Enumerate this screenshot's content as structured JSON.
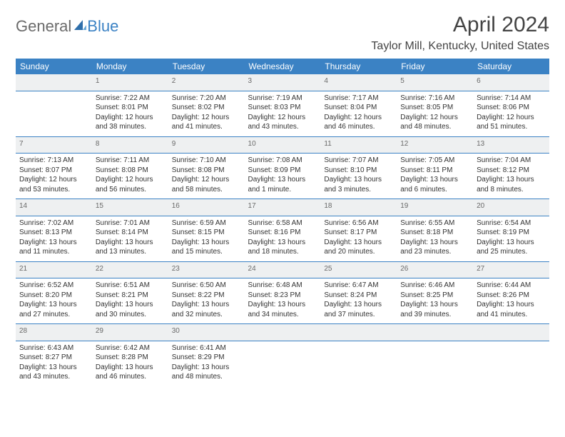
{
  "logo": {
    "text1": "General",
    "text2": "Blue"
  },
  "title": "April 2024",
  "location": "Taylor Mill, Kentucky, United States",
  "colors": {
    "header_bg": "#3b82c4",
    "header_text": "#ffffff",
    "daynum_bg": "#eef0f1",
    "daynum_text": "#6a6a6a",
    "row_border": "#3b82c4",
    "body_text": "#333333"
  },
  "day_headers": [
    "Sunday",
    "Monday",
    "Tuesday",
    "Wednesday",
    "Thursday",
    "Friday",
    "Saturday"
  ],
  "weeks": [
    [
      null,
      {
        "n": "1",
        "sr": "Sunrise: 7:22 AM",
        "ss": "Sunset: 8:01 PM",
        "dl": "Daylight: 12 hours and 38 minutes."
      },
      {
        "n": "2",
        "sr": "Sunrise: 7:20 AM",
        "ss": "Sunset: 8:02 PM",
        "dl": "Daylight: 12 hours and 41 minutes."
      },
      {
        "n": "3",
        "sr": "Sunrise: 7:19 AM",
        "ss": "Sunset: 8:03 PM",
        "dl": "Daylight: 12 hours and 43 minutes."
      },
      {
        "n": "4",
        "sr": "Sunrise: 7:17 AM",
        "ss": "Sunset: 8:04 PM",
        "dl": "Daylight: 12 hours and 46 minutes."
      },
      {
        "n": "5",
        "sr": "Sunrise: 7:16 AM",
        "ss": "Sunset: 8:05 PM",
        "dl": "Daylight: 12 hours and 48 minutes."
      },
      {
        "n": "6",
        "sr": "Sunrise: 7:14 AM",
        "ss": "Sunset: 8:06 PM",
        "dl": "Daylight: 12 hours and 51 minutes."
      }
    ],
    [
      {
        "n": "7",
        "sr": "Sunrise: 7:13 AM",
        "ss": "Sunset: 8:07 PM",
        "dl": "Daylight: 12 hours and 53 minutes."
      },
      {
        "n": "8",
        "sr": "Sunrise: 7:11 AM",
        "ss": "Sunset: 8:08 PM",
        "dl": "Daylight: 12 hours and 56 minutes."
      },
      {
        "n": "9",
        "sr": "Sunrise: 7:10 AM",
        "ss": "Sunset: 8:08 PM",
        "dl": "Daylight: 12 hours and 58 minutes."
      },
      {
        "n": "10",
        "sr": "Sunrise: 7:08 AM",
        "ss": "Sunset: 8:09 PM",
        "dl": "Daylight: 13 hours and 1 minute."
      },
      {
        "n": "11",
        "sr": "Sunrise: 7:07 AM",
        "ss": "Sunset: 8:10 PM",
        "dl": "Daylight: 13 hours and 3 minutes."
      },
      {
        "n": "12",
        "sr": "Sunrise: 7:05 AM",
        "ss": "Sunset: 8:11 PM",
        "dl": "Daylight: 13 hours and 6 minutes."
      },
      {
        "n": "13",
        "sr": "Sunrise: 7:04 AM",
        "ss": "Sunset: 8:12 PM",
        "dl": "Daylight: 13 hours and 8 minutes."
      }
    ],
    [
      {
        "n": "14",
        "sr": "Sunrise: 7:02 AM",
        "ss": "Sunset: 8:13 PM",
        "dl": "Daylight: 13 hours and 11 minutes."
      },
      {
        "n": "15",
        "sr": "Sunrise: 7:01 AM",
        "ss": "Sunset: 8:14 PM",
        "dl": "Daylight: 13 hours and 13 minutes."
      },
      {
        "n": "16",
        "sr": "Sunrise: 6:59 AM",
        "ss": "Sunset: 8:15 PM",
        "dl": "Daylight: 13 hours and 15 minutes."
      },
      {
        "n": "17",
        "sr": "Sunrise: 6:58 AM",
        "ss": "Sunset: 8:16 PM",
        "dl": "Daylight: 13 hours and 18 minutes."
      },
      {
        "n": "18",
        "sr": "Sunrise: 6:56 AM",
        "ss": "Sunset: 8:17 PM",
        "dl": "Daylight: 13 hours and 20 minutes."
      },
      {
        "n": "19",
        "sr": "Sunrise: 6:55 AM",
        "ss": "Sunset: 8:18 PM",
        "dl": "Daylight: 13 hours and 23 minutes."
      },
      {
        "n": "20",
        "sr": "Sunrise: 6:54 AM",
        "ss": "Sunset: 8:19 PM",
        "dl": "Daylight: 13 hours and 25 minutes."
      }
    ],
    [
      {
        "n": "21",
        "sr": "Sunrise: 6:52 AM",
        "ss": "Sunset: 8:20 PM",
        "dl": "Daylight: 13 hours and 27 minutes."
      },
      {
        "n": "22",
        "sr": "Sunrise: 6:51 AM",
        "ss": "Sunset: 8:21 PM",
        "dl": "Daylight: 13 hours and 30 minutes."
      },
      {
        "n": "23",
        "sr": "Sunrise: 6:50 AM",
        "ss": "Sunset: 8:22 PM",
        "dl": "Daylight: 13 hours and 32 minutes."
      },
      {
        "n": "24",
        "sr": "Sunrise: 6:48 AM",
        "ss": "Sunset: 8:23 PM",
        "dl": "Daylight: 13 hours and 34 minutes."
      },
      {
        "n": "25",
        "sr": "Sunrise: 6:47 AM",
        "ss": "Sunset: 8:24 PM",
        "dl": "Daylight: 13 hours and 37 minutes."
      },
      {
        "n": "26",
        "sr": "Sunrise: 6:46 AM",
        "ss": "Sunset: 8:25 PM",
        "dl": "Daylight: 13 hours and 39 minutes."
      },
      {
        "n": "27",
        "sr": "Sunrise: 6:44 AM",
        "ss": "Sunset: 8:26 PM",
        "dl": "Daylight: 13 hours and 41 minutes."
      }
    ],
    [
      {
        "n": "28",
        "sr": "Sunrise: 6:43 AM",
        "ss": "Sunset: 8:27 PM",
        "dl": "Daylight: 13 hours and 43 minutes."
      },
      {
        "n": "29",
        "sr": "Sunrise: 6:42 AM",
        "ss": "Sunset: 8:28 PM",
        "dl": "Daylight: 13 hours and 46 minutes."
      },
      {
        "n": "30",
        "sr": "Sunrise: 6:41 AM",
        "ss": "Sunset: 8:29 PM",
        "dl": "Daylight: 13 hours and 48 minutes."
      },
      null,
      null,
      null,
      null
    ]
  ]
}
